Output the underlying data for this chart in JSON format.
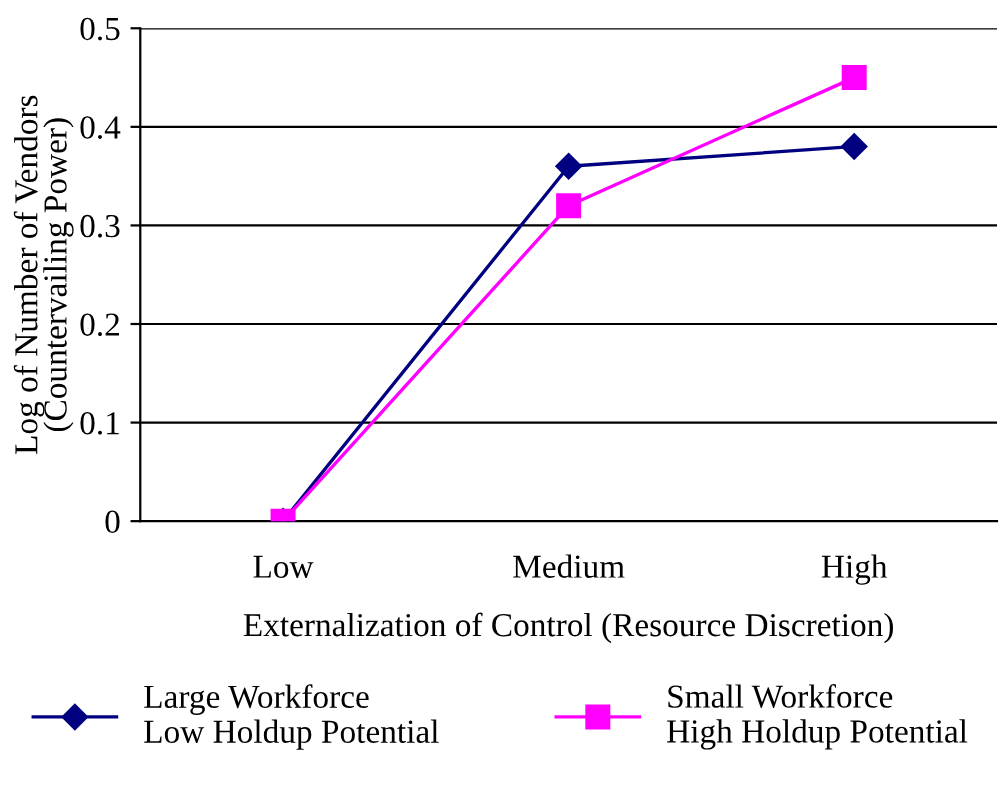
{
  "chart_data": {
    "type": "line",
    "xlabel": "Externalization of Control (Resource Discretion)",
    "ylabel": "Log of Number of Vendors\n(Countervailing Power)",
    "categories": [
      "Low",
      "Medium",
      "High"
    ],
    "series": [
      {
        "name": "Large Workforce\nLow Holdup Potential",
        "color": "#000080",
        "values": [
          0,
          0.36,
          0.38
        ],
        "marker": "diamond"
      },
      {
        "name": "Small Workforce\nHigh Holdup Potential",
        "color": "#ff00ff",
        "values": [
          0,
          0.32,
          0.45
        ],
        "marker": "square"
      }
    ],
    "ylim": [
      0,
      0.5
    ],
    "yticks": [
      0,
      0.1,
      0.2,
      0.3,
      0.4,
      0.5
    ],
    "grid": "y",
    "legend": "bottom",
    "line_style": "solid"
  }
}
